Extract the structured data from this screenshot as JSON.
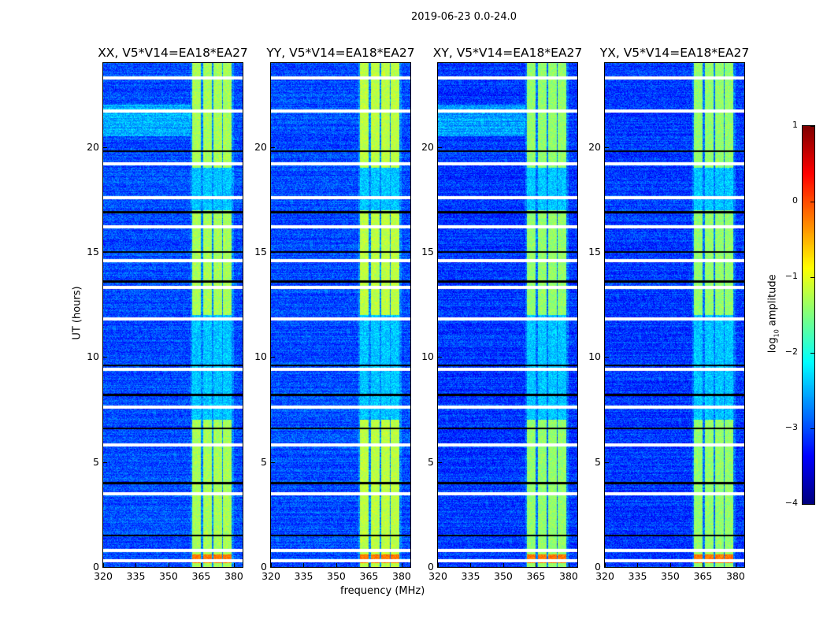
{
  "chart_data": {
    "type": "heatmap",
    "title": "2019-06-23 0.0-24.0",
    "xlabel": "frequency (MHz)",
    "ylabel": "UT (hours)",
    "xlim": [
      320,
      384
    ],
    "ylim": [
      0,
      24
    ],
    "xticks": [
      320,
      335,
      350,
      365,
      380
    ],
    "yticks": [
      0,
      5,
      10,
      15,
      20
    ],
    "colormap": "jet",
    "colorbar": {
      "label": "log10 amplitude",
      "label_main": "log",
      "label_sub": "10",
      "label_tail": " amplitude",
      "range": [
        -4,
        1
      ],
      "ticks": [
        1,
        0,
        -1,
        -2,
        -3,
        -4
      ],
      "tick_labels": [
        "1",
        "0",
        "−1",
        "−2",
        "−3",
        "−4"
      ]
    },
    "panels": [
      {
        "title": "XX, V5*V14=EA18*EA27",
        "background_level": -3.0,
        "band_level": -1.3
      },
      {
        "title": "YY, V5*V14=EA18*EA27",
        "background_level": -3.0,
        "band_level": -1.2
      },
      {
        "title": "XY, V5*V14=EA18*EA27",
        "background_level": -3.1,
        "band_level": -1.4
      },
      {
        "title": "YX, V5*V14=EA18*EA27",
        "background_level": -3.1,
        "band_level": -1.4
      }
    ],
    "rfi_subbands_mhz": [
      [
        361,
        365
      ],
      [
        366,
        370
      ],
      [
        370.5,
        374.5
      ],
      [
        375,
        379
      ]
    ],
    "strong_rfi_hours": [
      [
        0,
        7
      ],
      [
        12,
        17
      ],
      [
        19,
        24
      ]
    ],
    "very_strong_hours": [
      [
        0.2,
        0.6
      ]
    ],
    "flagged_white_hours": [
      23.3,
      21.7,
      19.2,
      17.6,
      16.2,
      14.6,
      13.3,
      11.8,
      9.4,
      7.6,
      5.8,
      3.5,
      0.8,
      0.3
    ],
    "flagged_black_hours": [
      19.8,
      16.9,
      15.0,
      13.6,
      9.6,
      8.2,
      6.6,
      4.0,
      1.5
    ]
  }
}
